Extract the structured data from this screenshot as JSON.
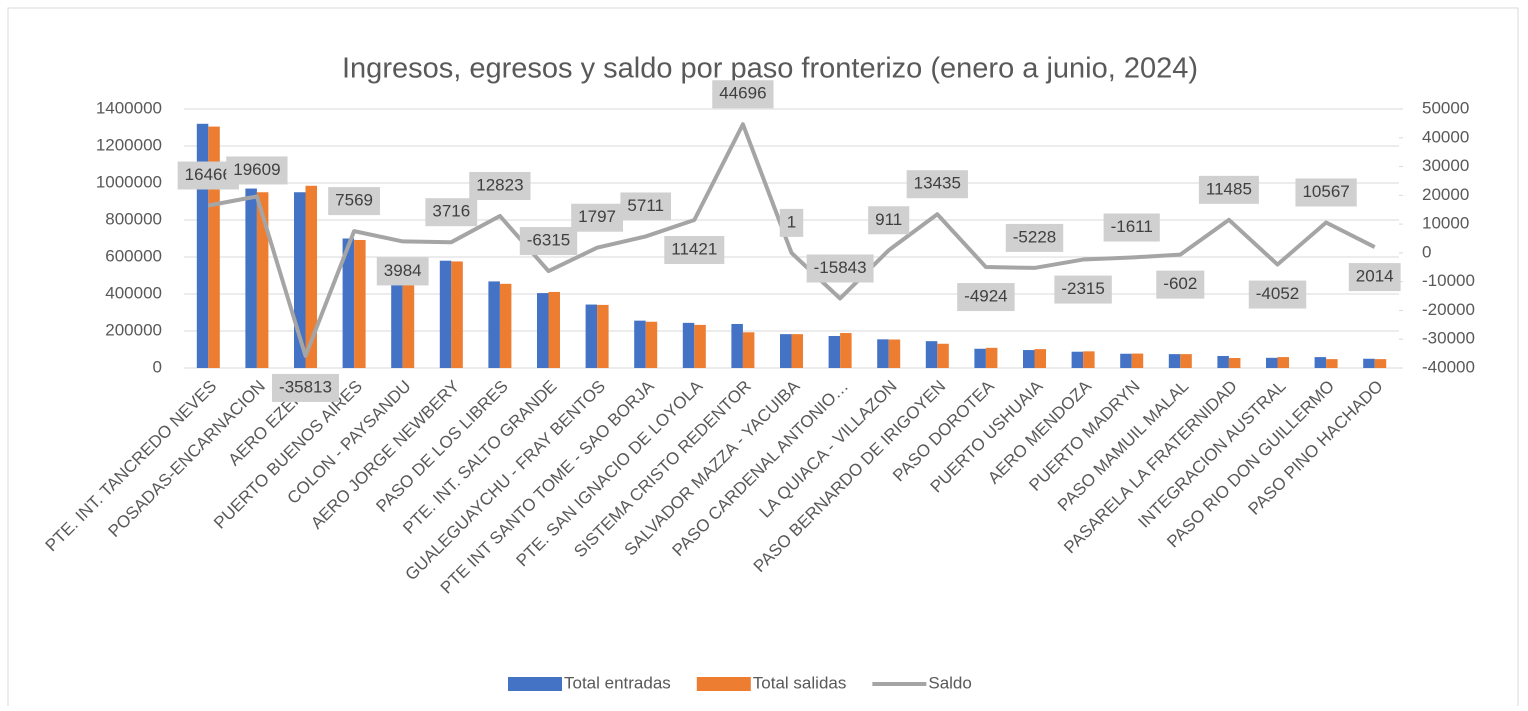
{
  "chart_data": {
    "type": "bar-line",
    "title": "Ingresos, egresos y saldo por paso fronterizo (enero a junio, 2024)",
    "categories": [
      "PTE. INT. TANCREDO NEVES",
      "POSADAS-ENCARNACION",
      "AERO EZEIZA",
      "PUERTO BUENOS AIRES",
      "COLON - PAYSANDU",
      "AERO JORGE NEWBERY",
      "PASO DE LOS LIBRES",
      "PTE. INT. SALTO GRANDE",
      "GUALEGUAYCHU - FRAY BENTOS",
      "PTE INT SANTO TOME - SAO BORJA",
      "PTE. SAN IGNACIO DE LOYOLA",
      "SISTEMA CRISTO REDENTOR",
      "SALVADOR MAZZA - YACUIBA",
      "PASO CARDENAL ANTONIO…",
      "LA QUIACA - VILLAZON",
      "PASO BERNARDO DE IRIGOYEN",
      "PASO DOROTEA",
      "PUERTO USHUAIA",
      "AERO MENDOZA",
      "PUERTO MADRYN",
      "PASO MAMUIL MALAL",
      "PASARELA LA FRATERNIDAD",
      "INTEGRACION AUSTRAL",
      "PASO RIO DON GUILLERMO",
      "PASO PINO HACHADO"
    ],
    "series": [
      {
        "name": "Total entradas",
        "color": "#4472c4",
        "type": "bar",
        "values": [
          1320000,
          970000,
          950000,
          700000,
          553000,
          580000,
          468000,
          405000,
          343000,
          256000,
          244000,
          238000,
          183000,
          173000,
          155000,
          145000,
          104000,
          97000,
          88000,
          77000,
          75000,
          65000,
          55000,
          59000,
          50000
        ]
      },
      {
        "name": "Total salidas",
        "color": "#ed7d31",
        "type": "bar",
        "values": [
          1305000,
          950000,
          985000,
          692000,
          549000,
          576000,
          455000,
          411000,
          341000,
          250000,
          233000,
          193000,
          183000,
          189000,
          154000,
          131000,
          109000,
          102000,
          90000,
          78000,
          75000,
          54000,
          59000,
          48000,
          48000
        ]
      },
      {
        "name": "Saldo",
        "color": "#a5a5a5",
        "type": "line",
        "axis": "y2",
        "values": [
          16466,
          19609,
          -35813,
          7569,
          3984,
          3716,
          12823,
          -6315,
          1797,
          5711,
          11421,
          44696,
          1,
          -15843,
          911,
          13435,
          -4924,
          -5228,
          -2315,
          -1611,
          -602,
          11485,
          -4052,
          10567,
          2014
        ]
      }
    ],
    "ylim": [
      0,
      1400000
    ],
    "yticks": [
      0,
      200000,
      400000,
      600000,
      800000,
      1000000,
      1200000,
      1400000
    ],
    "y2lim": [
      -40000,
      50000
    ],
    "y2ticks": [
      -40000,
      -30000,
      -20000,
      -10000,
      0,
      10000,
      20000,
      30000,
      40000,
      50000
    ],
    "grid": true
  }
}
